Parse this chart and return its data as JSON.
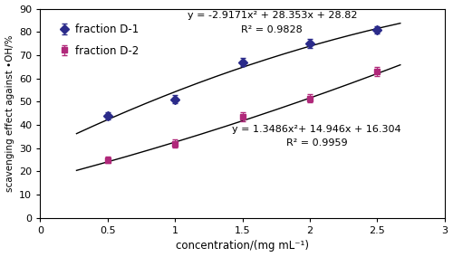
{
  "d1_x": [
    0.5,
    1.0,
    1.5,
    2.0,
    2.5
  ],
  "d1_y": [
    44.0,
    51.0,
    67.0,
    75.0,
    81.0
  ],
  "d1_yerr": [
    1.5,
    1.8,
    1.8,
    1.8,
    1.5
  ],
  "d2_x": [
    0.5,
    1.0,
    1.5,
    2.0,
    2.5
  ],
  "d2_y": [
    25.0,
    32.0,
    43.5,
    51.5,
    63.0
  ],
  "d2_yerr": [
    1.5,
    1.8,
    1.8,
    1.8,
    1.8
  ],
  "d1_color": "#2b2b8a",
  "d2_color": "#b0287a",
  "eq1": "y = -2.9171x² + 28.353x + 28.82",
  "r2_1": "R² = 0.9828",
  "eq2": "y = 1.3486x²+ 14.946x + 16.304",
  "r2_2": "R² = 0.9959",
  "d1_coeffs": [
    -2.9171,
    28.353,
    28.82
  ],
  "d2_coeffs": [
    1.3486,
    14.946,
    16.304
  ],
  "xlabel": "concentration/(mg mL⁻¹)",
  "ylabel": "scavenging effect against •OH/%",
  "xlim": [
    0,
    3
  ],
  "ylim": [
    0,
    90
  ],
  "xticks": [
    0,
    0.5,
    1,
    1.5,
    2,
    2.5,
    3
  ],
  "xtick_labels": [
    "0",
    "0.5",
    "1",
    "1.5",
    "2",
    "2.5",
    "3"
  ],
  "yticks": [
    0,
    10,
    20,
    30,
    40,
    50,
    60,
    70,
    80,
    90
  ],
  "legend_d1": "fraction D-1",
  "legend_d2": "fraction D-2",
  "eq1_x": 1.72,
  "eq1_y": 89,
  "r2_1_x": 1.72,
  "r2_1_y": 83,
  "eq2_x": 2.05,
  "eq2_y": 40,
  "r2_2_x": 2.05,
  "r2_2_y": 34
}
